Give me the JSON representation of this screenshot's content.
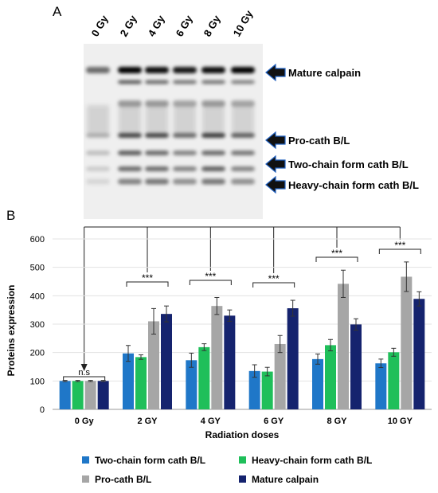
{
  "panel_a": {
    "label": "A",
    "lane_labels": [
      "0 Gy",
      "2 Gy",
      "4 Gy",
      "6 Gy",
      "8 Gy",
      "10 Gy"
    ],
    "band_labels": [
      "Mature calpain",
      "Pro-cath B/L",
      "Two-chain form cath B/L",
      "Heavy-chain form cath B/L"
    ]
  },
  "panel_b": {
    "label": "B",
    "significance": [
      "n.s",
      "***",
      "***",
      "***",
      "***",
      "***"
    ]
  },
  "chart_data": {
    "type": "bar",
    "categories": [
      "0 Gy",
      "2 GY",
      "4 GY",
      "6 GY",
      "8 GY",
      "10 GY"
    ],
    "series": [
      {
        "name": "Two-chain form cath B/L",
        "color": "#1f77c8",
        "values": [
          100,
          197,
          173,
          135,
          177,
          162
        ],
        "errors": [
          2,
          28,
          25,
          22,
          18,
          15
        ]
      },
      {
        "name": "Heavy-chain form cath B/L",
        "color": "#1fbf5a",
        "values": [
          100,
          184,
          219,
          133,
          226,
          201
        ],
        "errors": [
          2,
          8,
          12,
          15,
          20,
          14
        ]
      },
      {
        "name": "Pro-cath B/L",
        "color": "#a6a6a6",
        "values": [
          100,
          310,
          364,
          230,
          442,
          467
        ],
        "errors": [
          2,
          45,
          30,
          30,
          48,
          52
        ]
      },
      {
        "name": "Mature calpain",
        "color": "#15236e",
        "values": [
          100,
          336,
          330,
          356,
          299,
          389
        ],
        "errors": [
          2,
          28,
          20,
          28,
          20,
          25
        ]
      }
    ],
    "xlabel": "Radiation doses",
    "ylabel": "Proteins expression",
    "ylim": [
      0,
      600
    ],
    "yticks": [
      0,
      100,
      200,
      300,
      400,
      500,
      600
    ],
    "grid": true,
    "legend": "bottom"
  }
}
